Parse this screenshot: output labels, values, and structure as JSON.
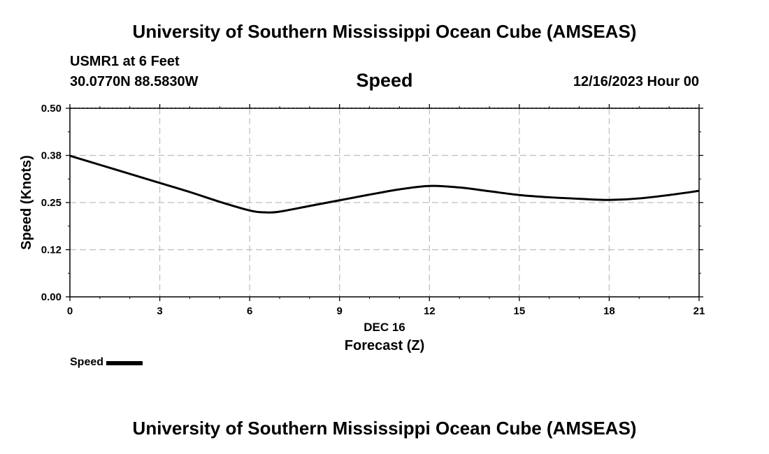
{
  "header": {
    "title": "University of Southern Mississippi Ocean Cube (AMSEAS)",
    "station": "USMR1 at 6 Feet",
    "coordinates": "30.0770N  88.5830W",
    "variable": "Speed",
    "datetime": "12/16/2023 Hour 00"
  },
  "footer": {
    "title": "University of Southern Mississippi Ocean Cube (AMSEAS)"
  },
  "legend": {
    "label": "Speed"
  },
  "chart_data": {
    "type": "line",
    "title": "Speed",
    "xlabel": "Forecast (Z)",
    "x_date_label": "DEC 16",
    "ylabel": "Speed (Knots)",
    "xlim": [
      0,
      21
    ],
    "ylim": [
      0,
      0.5
    ],
    "x_ticks": [
      0,
      3,
      6,
      9,
      12,
      15,
      18,
      21
    ],
    "x_tick_labels": [
      "0",
      "3",
      "6",
      "9",
      "12",
      "15",
      "18",
      "21"
    ],
    "y_ticks": [
      0,
      0.125,
      0.25,
      0.375,
      0.5
    ],
    "y_tick_labels": [
      "0.00",
      "0.12",
      "0.25",
      "0.38",
      "0.50"
    ],
    "grid": true,
    "legend_position": "bottom-left",
    "series": [
      {
        "name": "Speed",
        "color": "#000000",
        "x": [
          0,
          1,
          2,
          3,
          4,
          5,
          6,
          6.5,
          7,
          8,
          9,
          10,
          11,
          12,
          13,
          14,
          15,
          16,
          17,
          18,
          19,
          20,
          21
        ],
        "values": [
          0.374,
          0.35,
          0.326,
          0.302,
          0.278,
          0.252,
          0.229,
          0.224,
          0.226,
          0.241,
          0.256,
          0.271,
          0.285,
          0.294,
          0.29,
          0.28,
          0.27,
          0.264,
          0.26,
          0.257,
          0.261,
          0.27,
          0.281
        ]
      }
    ]
  }
}
